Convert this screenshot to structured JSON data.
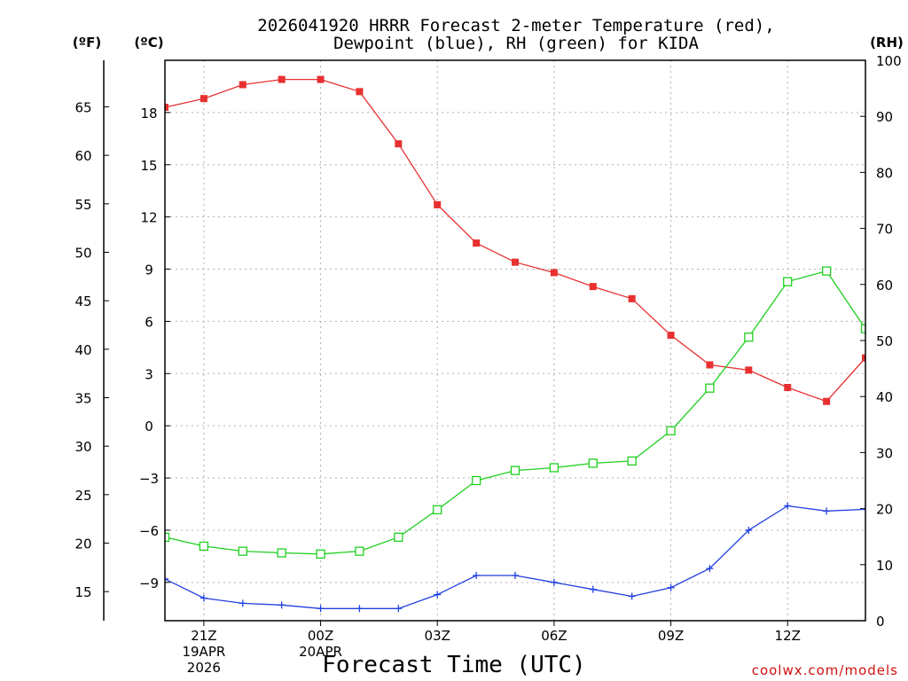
{
  "chart_data": {
    "type": "line",
    "title_line1": "2026041920 HRRR Forecast 2-meter Temperature (red),",
    "title_line2": "Dewpoint (blue), RH (green) for KIDA",
    "xlabel": "Forecast Time (UTC)",
    "credit": "coolwx.com/models",
    "units": {
      "f": "(ºF)",
      "c": "(ºC)",
      "rh": "(RH)"
    },
    "x": [
      0,
      1,
      2,
      3,
      4,
      5,
      6,
      7,
      8,
      9,
      10,
      11,
      12,
      13,
      14,
      15,
      16,
      17,
      18
    ],
    "xlim": [
      0,
      18
    ],
    "x_ticks": [
      {
        "x": 1,
        "lines": [
          "21Z",
          "19APR",
          "2026"
        ]
      },
      {
        "x": 4,
        "lines": [
          "00Z",
          "20APR"
        ]
      },
      {
        "x": 7,
        "lines": [
          "03Z"
        ]
      },
      {
        "x": 10,
        "lines": [
          "06Z"
        ]
      },
      {
        "x": 13,
        "lines": [
          "09Z"
        ]
      },
      {
        "x": 16,
        "lines": [
          "12Z"
        ]
      }
    ],
    "ylim_c": [
      -11.2,
      21
    ],
    "ylim_f": [
      12,
      69.8
    ],
    "yticks_c": [
      -9,
      -6,
      -3,
      0,
      3,
      6,
      9,
      12,
      15,
      18
    ],
    "yticks_f": [
      15,
      20,
      25,
      30,
      35,
      40,
      45,
      50,
      55,
      60,
      65
    ],
    "ylim_rh": [
      0,
      100
    ],
    "yticks_rh": [
      0,
      10,
      20,
      30,
      40,
      50,
      60,
      70,
      80,
      90,
      100
    ],
    "series": [
      {
        "name": "Temperature",
        "axis": "c",
        "color": "#e83030",
        "marker": "filled-square",
        "values": [
          18.3,
          18.8,
          19.6,
          19.9,
          19.9,
          19.2,
          16.2,
          12.7,
          10.5,
          9.4,
          8.8,
          8.0,
          7.3,
          5.2,
          3.5,
          3.2,
          2.2,
          1.4,
          3.9
        ]
      },
      {
        "name": "Dewpoint",
        "axis": "c",
        "color": "#2040e0",
        "marker": "plus",
        "values": [
          -8.8,
          -9.9,
          -10.2,
          -10.3,
          -10.5,
          -10.5,
          -10.5,
          -9.7,
          -8.6,
          -8.6,
          -9.0,
          -9.4,
          -9.8,
          -9.3,
          -8.2,
          -6.0,
          -4.6,
          -4.9,
          -4.8
        ]
      },
      {
        "name": "RH",
        "axis": "rh",
        "color": "#20d020",
        "marker": "open-square",
        "values": [
          14.9,
          13.3,
          12.4,
          12.1,
          11.9,
          12.4,
          14.9,
          19.8,
          25.0,
          26.8,
          27.3,
          28.1,
          28.5,
          33.9,
          41.5,
          50.6,
          60.5,
          62.4,
          52.1
        ]
      }
    ]
  }
}
